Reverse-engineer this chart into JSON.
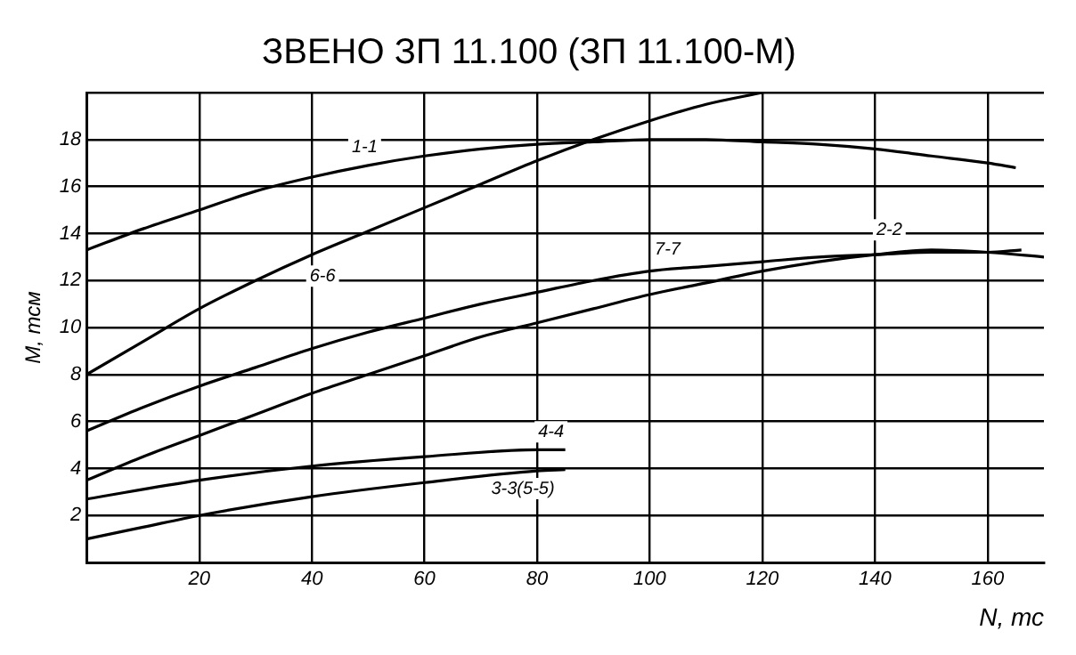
{
  "chart_data": {
    "type": "line",
    "title": "ЗВЕНО ЗП 11.100 (ЗП 11.100-М)",
    "xlabel": "N, тс",
    "ylabel": "M, тсм",
    "xlim": [
      0,
      170
    ],
    "ylim": [
      0,
      20
    ],
    "xticks": [
      {
        "value": 0,
        "label": null
      },
      20,
      40,
      60,
      80,
      100,
      120,
      140,
      160
    ],
    "yticks": [
      {
        "value": 0,
        "label": null
      },
      2,
      4,
      6,
      8,
      10,
      12,
      14,
      16,
      18,
      {
        "value": 20,
        "label": null
      }
    ],
    "grid": true,
    "legend": false,
    "marker": "none",
    "line_style": "solid",
    "series": [
      {
        "name": "1-1",
        "color": "#000000",
        "x": [
          0,
          10,
          20,
          30,
          40,
          50,
          60,
          70,
          80,
          90,
          100,
          110,
          120,
          130,
          140,
          150,
          160,
          165
        ],
        "values": [
          13.3,
          14.2,
          15.0,
          15.8,
          16.4,
          16.9,
          17.3,
          17.6,
          17.8,
          17.9,
          18.0,
          18.0,
          17.9,
          17.8,
          17.6,
          17.3,
          17.0,
          16.8
        ]
      },
      {
        "name": "6-6",
        "color": "#000000",
        "x": [
          0,
          10,
          20,
          30,
          40,
          50,
          60,
          70,
          80,
          90,
          100,
          110,
          120
        ],
        "values": [
          8.0,
          9.4,
          10.8,
          12.0,
          13.1,
          14.1,
          15.1,
          16.1,
          17.1,
          18.0,
          18.8,
          19.5,
          20.0
        ]
      },
      {
        "name": "7-7",
        "color": "#000000",
        "x": [
          0,
          10,
          20,
          30,
          40,
          50,
          60,
          70,
          80,
          90,
          100,
          110,
          120,
          130,
          140,
          150,
          160,
          166
        ],
        "values": [
          5.6,
          6.6,
          7.5,
          8.3,
          9.1,
          9.8,
          10.4,
          11.0,
          11.5,
          12.0,
          12.4,
          12.6,
          12.8,
          13.0,
          13.1,
          13.2,
          13.2,
          13.3
        ]
      },
      {
        "name": "2-2",
        "color": "#000000",
        "x": [
          0,
          10,
          20,
          30,
          40,
          50,
          60,
          70,
          80,
          90,
          100,
          110,
          120,
          130,
          140,
          150,
          160,
          170
        ],
        "values": [
          3.5,
          4.5,
          5.4,
          6.3,
          7.2,
          8.0,
          8.8,
          9.6,
          10.2,
          10.8,
          11.4,
          11.9,
          12.4,
          12.8,
          13.1,
          13.3,
          13.2,
          13.0
        ]
      },
      {
        "name": "4-4",
        "color": "#000000",
        "x": [
          0,
          20,
          40,
          60,
          80,
          85
        ],
        "values": [
          2.7,
          3.5,
          4.1,
          4.5,
          4.8,
          4.8
        ]
      },
      {
        "name": "3-3(5-5)",
        "color": "#000000",
        "x": [
          0,
          10,
          20,
          40,
          60,
          80,
          85
        ],
        "values": [
          1.0,
          1.5,
          2.0,
          2.8,
          3.4,
          3.9,
          3.95
        ]
      }
    ]
  }
}
